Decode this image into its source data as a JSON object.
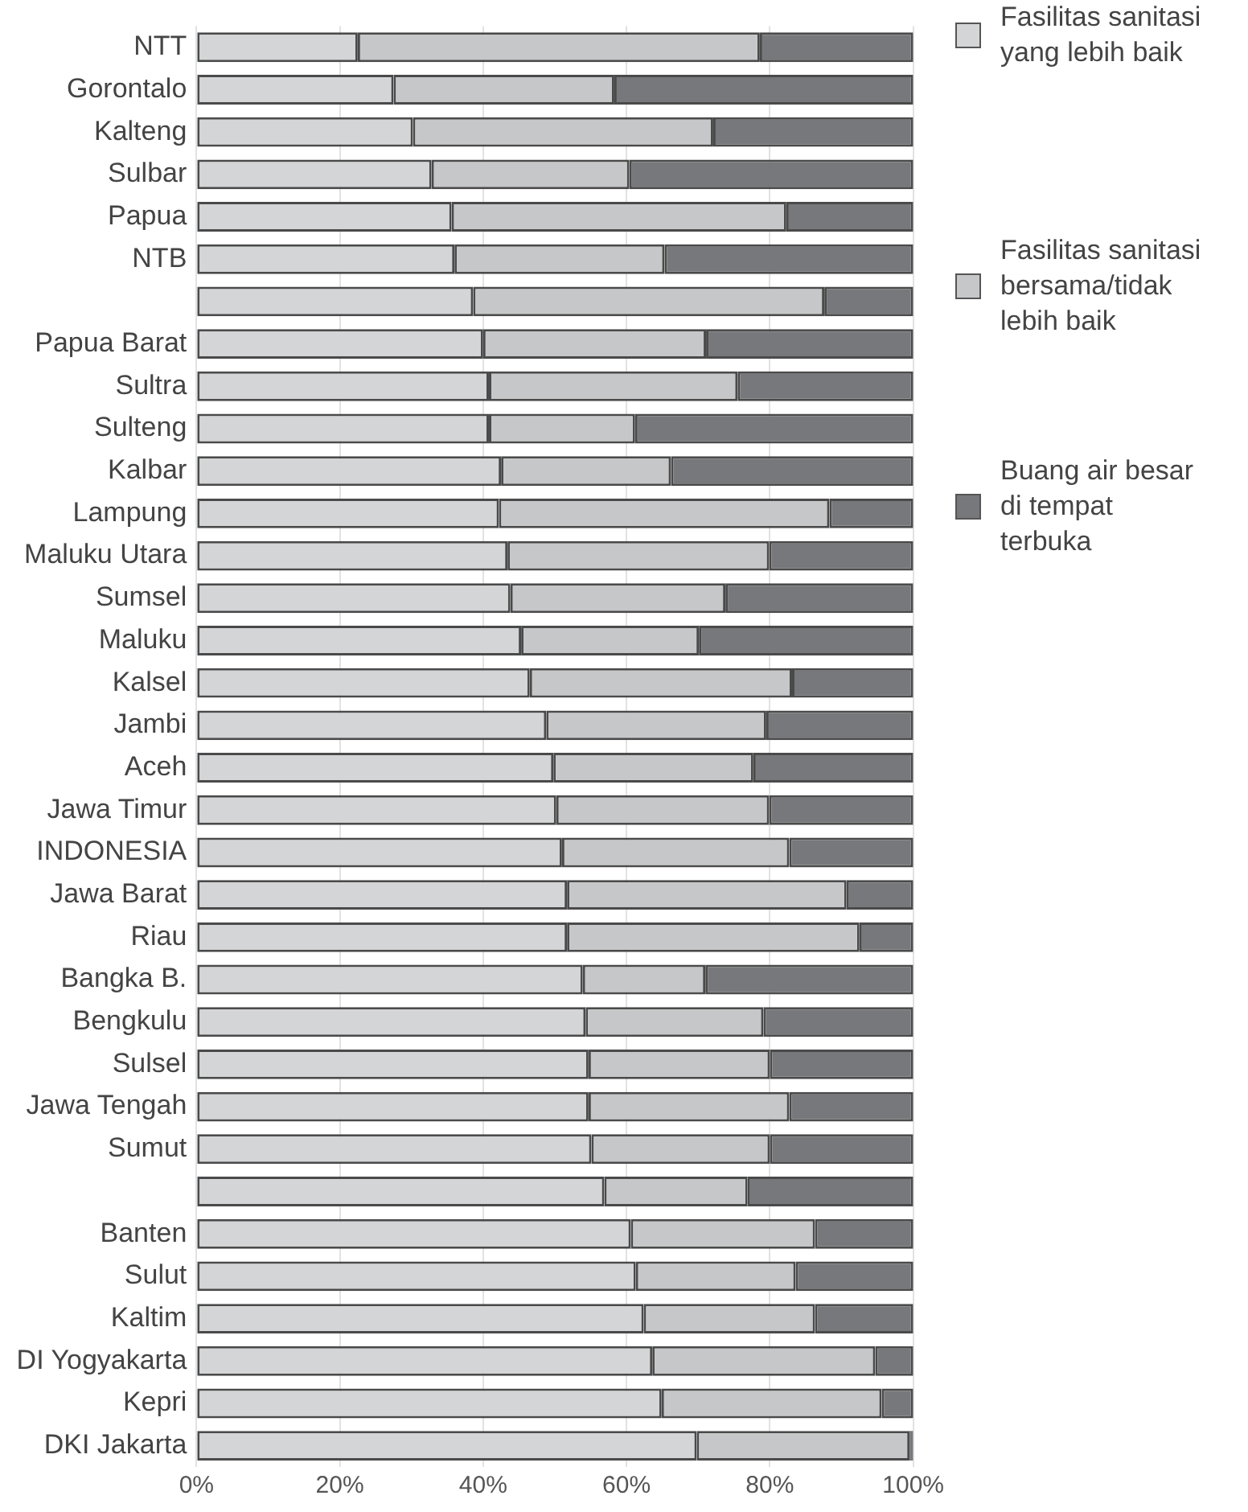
{
  "chart_data": {
    "type": "bar",
    "orientation": "horizontal",
    "stacked": true,
    "categories": [
      "NTT",
      "Gorontalo",
      "Kalteng",
      "Sulbar",
      "Papua",
      "NTB",
      null,
      "Papua Barat",
      "Sultra",
      "Sulteng",
      "Kalbar",
      "Lampung",
      "Maluku Utara",
      "Sumsel",
      "Maluku",
      "Kalsel",
      "Jambi",
      "Aceh",
      "Jawa Timur",
      "INDONESIA",
      "Jawa Barat",
      "Riau",
      "Bangka B.",
      "Bengkulu",
      "Sulsel",
      "Jawa Tengah",
      "Sumut",
      null,
      "Banten",
      "Sulut",
      "Kaltim",
      "DI Yogyakarta",
      "Kepri",
      "DKI Jakarta"
    ],
    "series": [
      {
        "name": "Fasilitas sanitasi yang lebih baik",
        "color": "#d4d5d7",
        "values": [
          22.5,
          27.5,
          30.2,
          32.8,
          35.6,
          36.0,
          38.6,
          40.0,
          40.8,
          40.8,
          42.5,
          42.2,
          43.4,
          43.8,
          45.3,
          46.5,
          48.8,
          49.8,
          50.2,
          51.0,
          51.7,
          51.7,
          53.9,
          54.3,
          54.7,
          54.7,
          55.1,
          56.9,
          60.6,
          61.3,
          62.4,
          63.6,
          64.9,
          69.8
        ]
      },
      {
        "name": "Fasilitas sanitasi bersama/tidak lebih baik",
        "color": "#c6c7c9",
        "values": [
          56.1,
          30.8,
          41.9,
          27.6,
          46.7,
          29.3,
          49.0,
          31.1,
          34.7,
          20.4,
          23.7,
          46.1,
          36.5,
          30.0,
          24.8,
          36.6,
          30.7,
          27.9,
          29.7,
          31.7,
          39.0,
          40.8,
          17.1,
          24.8,
          25.3,
          28.0,
          24.9,
          20.0,
          25.7,
          22.3,
          23.9,
          31.1,
          30.7,
          29.7
        ]
      },
      {
        "name": "Buang air besar di tempat terbuka",
        "color": "#77787b",
        "values": [
          21.4,
          41.7,
          27.9,
          39.6,
          17.7,
          34.7,
          12.4,
          28.9,
          24.5,
          38.8,
          33.8,
          11.7,
          20.1,
          26.2,
          29.9,
          16.9,
          20.5,
          22.3,
          20.1,
          17.3,
          9.3,
          7.5,
          29.0,
          20.9,
          20.0,
          17.3,
          20.0,
          23.1,
          13.7,
          16.4,
          13.7,
          5.3,
          4.4,
          0.5
        ]
      }
    ],
    "xlim": [
      0,
      100
    ],
    "xticks": [
      {
        "value": 0,
        "label": "0%"
      },
      {
        "value": 20,
        "label": "20%"
      },
      {
        "value": 40,
        "label": "40%"
      },
      {
        "value": 60,
        "label": "60%"
      },
      {
        "value": 80,
        "label": "80%"
      },
      {
        "value": 100,
        "label": "100%"
      }
    ],
    "grid": "x",
    "legend": "right"
  }
}
